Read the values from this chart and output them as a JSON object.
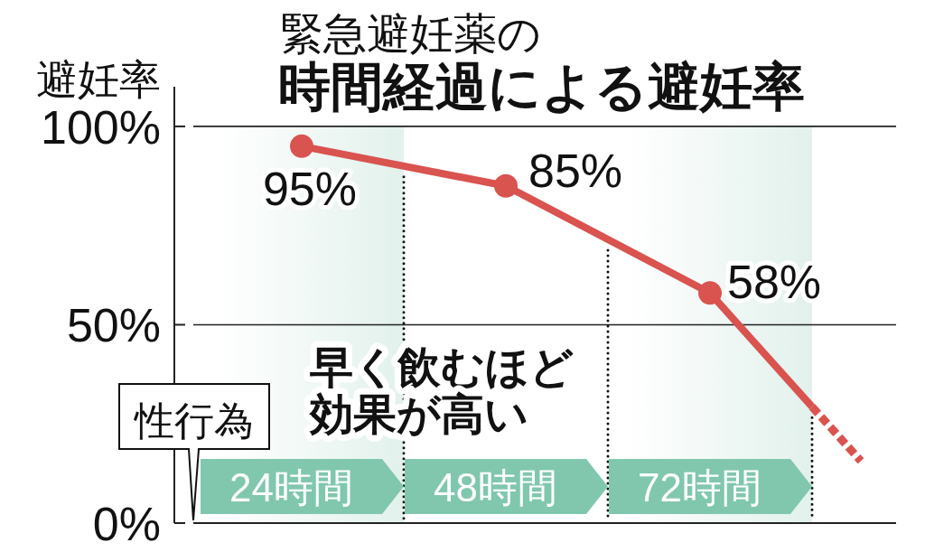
{
  "chart_data": {
    "type": "line",
    "subtitle": "緊急避妊薬の",
    "title": "時間経過による避妊率",
    "ylabel": "避妊率",
    "categories": [
      "24時間",
      "48時間",
      "72時間"
    ],
    "ylim": [
      0,
      110
    ],
    "yticks": [
      {
        "value": 0,
        "label": "0%"
      },
      {
        "value": 50,
        "label": "50%"
      },
      {
        "value": 100,
        "label": "100%"
      }
    ],
    "grid": true,
    "series": [
      {
        "color": "#d9534f",
        "values": [
          95,
          85,
          58
        ],
        "marker": "circle",
        "line_style": "solid",
        "value_labels": [
          "95%",
          "85%",
          "58%"
        ]
      }
    ],
    "bands": [
      {
        "axis": "x",
        "from": "24時間",
        "to": "24時間",
        "color": "#e2f1ec"
      },
      {
        "axis": "x",
        "from": "72時間",
        "to": "72時間",
        "color": "#e2f1ec"
      }
    ],
    "annotations": [
      "早く飲むほど効果が高い",
      "性行為"
    ]
  }
}
